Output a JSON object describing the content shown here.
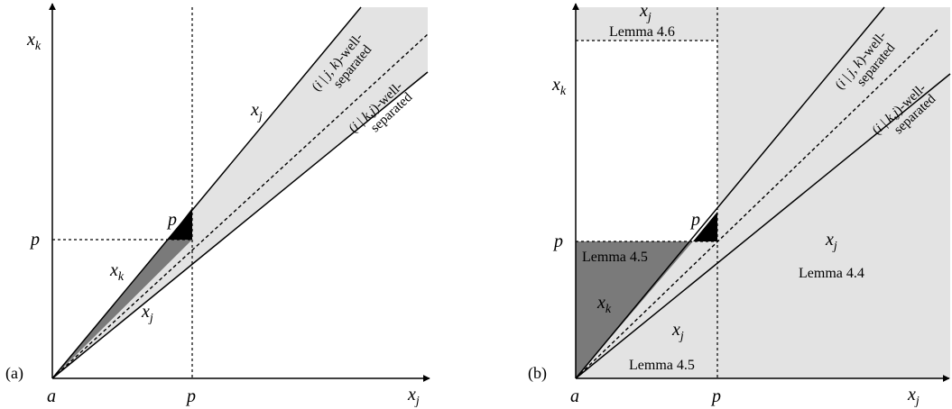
{
  "panel_a": {
    "tag": "(a)",
    "origin": "a",
    "x_axis": {
      "var": "x",
      "sub": "j"
    },
    "y_axis": {
      "var": "x",
      "sub": "k"
    },
    "p_x": "p",
    "p_y": "p",
    "p_point": "p",
    "region_labels": [
      {
        "var": "x",
        "sub": "j"
      },
      {
        "var": "x",
        "sub": "k"
      },
      {
        "var": "x",
        "sub": "j"
      }
    ],
    "line_labels": [
      {
        "pre": "(",
        "i": "i",
        "mid": " | ",
        "a": "j",
        "comma": ", ",
        "b": "k",
        "post": ")-well-",
        "cont": "separated"
      },
      {
        "pre": "(",
        "i": "i",
        "mid": " | ",
        "a": "k",
        "comma": ",",
        "b": "j",
        "post": ")-well-",
        "cont": "separated"
      }
    ]
  },
  "panel_b": {
    "tag": "(b)",
    "origin": "a",
    "x_axis": {
      "var": "x",
      "sub": "j"
    },
    "y_axis": {
      "var": "x",
      "sub": "k"
    },
    "p_x": "p",
    "p_y": "p",
    "p_point": "p",
    "region_labels": [
      {
        "var": "x",
        "sub": "j",
        "lemma": "Lemma 4.6"
      },
      {
        "var": "x",
        "sub": "j",
        "lemma": "Lemma 4.4"
      },
      {
        "var": "x",
        "sub": "k",
        "lemma": "Lemma 4.5"
      },
      {
        "var": "x",
        "sub": "j",
        "lemma": "Lemma 4.5"
      }
    ],
    "line_labels": [
      {
        "pre": "(",
        "i": "i",
        "mid": " | ",
        "a": "j",
        "comma": ", ",
        "b": "k",
        "post": ")-well-",
        "cont": "separated"
      },
      {
        "pre": "(",
        "i": "i",
        "mid": " | ",
        "a": "k",
        "comma": ",",
        "b": "j",
        "post": ")-well-",
        "cont": "separated"
      }
    ]
  },
  "colors": {
    "light_region": "#e3e3e3",
    "dark_region": "#7a7a7a",
    "point_triangle": "#000000",
    "line": "#000000"
  }
}
